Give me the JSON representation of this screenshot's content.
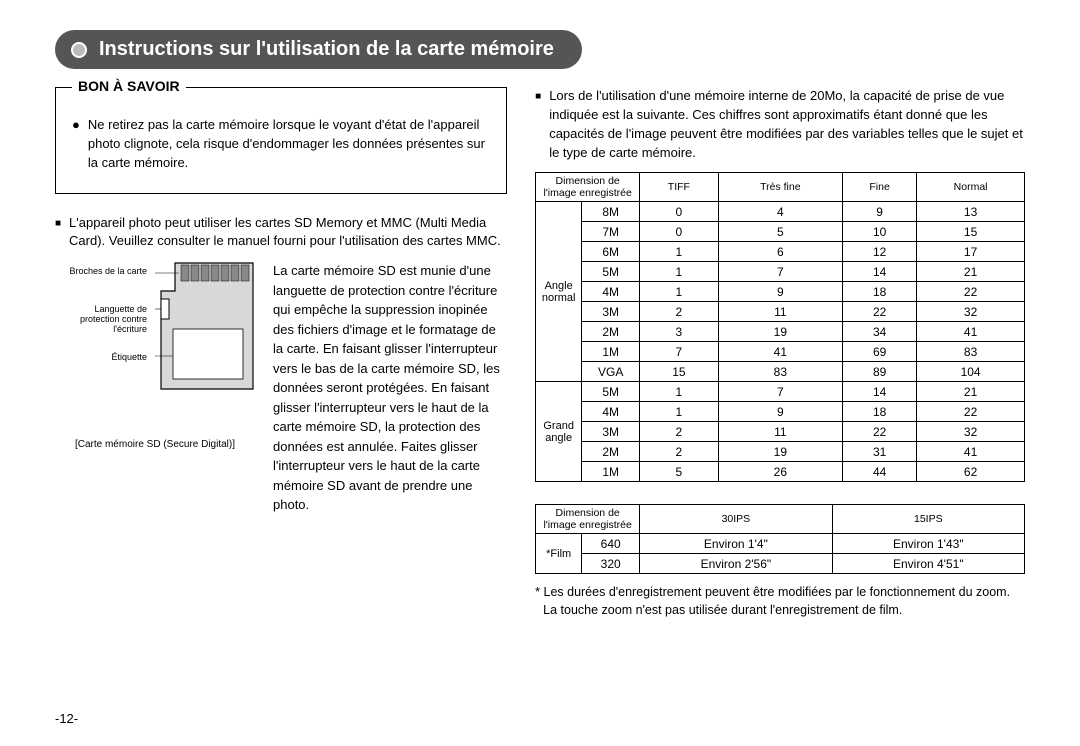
{
  "title": "Instructions sur l'utilisation de la carte mémoire",
  "infoBox": {
    "heading": "BON À SAVOIR",
    "text": "Ne retirez pas la carte mémoire lorsque le voyant d'état de l'appareil photo clignote, cela risque d'endommager les données présentes sur la carte mémoire."
  },
  "leftNote": "L'appareil photo peut utiliser les cartes SD Memory et MMC (Multi Media Card). Veuillez consulter le manuel fourni pour l'utilisation des cartes MMC.",
  "sdLabels": {
    "pins": "Broches de la carte",
    "lock": "Languette de protection contre l'écriture",
    "label": "Étiquette",
    "caption": "[Carte mémoire SD (Secure Digital)]"
  },
  "sdParagraph": "La carte mémoire SD est munie d'une languette de protection contre l'écriture qui empêche la suppression inopinée des fichiers d'image et le formatage de la carte. En faisant glisser l'interrupteur vers le bas de la carte mémoire SD, les données seront protégées. En faisant glisser l'interrupteur vers le haut de la carte mémoire SD, la protection des données est annulée. Faites glisser l'interrupteur vers le haut de la carte mémoire SD avant de prendre une photo.",
  "rightIntro": "Lors de l'utilisation d'une mémoire interne de 20Mo, la capacité de prise de vue indiquée est la suivante. Ces chiffres sont approximatifs étant donné que les capacités de l'image peuvent être modifiées par des variables telles que le sujet et le type de carte mémoire.",
  "table1": {
    "header": [
      "Dimension de l'image enregistrée",
      "TIFF",
      "Très fine",
      "Fine",
      "Normal"
    ],
    "groups": [
      {
        "label": "Angle normal",
        "rows": [
          {
            "size": "8M",
            "v": [
              "0",
              "4",
              "9",
              "13"
            ]
          },
          {
            "size": "7M",
            "v": [
              "0",
              "5",
              "10",
              "15"
            ]
          },
          {
            "size": "6M",
            "v": [
              "1",
              "6",
              "12",
              "17"
            ]
          },
          {
            "size": "5M",
            "v": [
              "1",
              "7",
              "14",
              "21"
            ]
          },
          {
            "size": "4M",
            "v": [
              "1",
              "9",
              "18",
              "22"
            ]
          },
          {
            "size": "3M",
            "v": [
              "2",
              "11",
              "22",
              "32"
            ]
          },
          {
            "size": "2M",
            "v": [
              "3",
              "19",
              "34",
              "41"
            ]
          },
          {
            "size": "1M",
            "v": [
              "7",
              "41",
              "69",
              "83"
            ]
          },
          {
            "size": "VGA",
            "v": [
              "15",
              "83",
              "89",
              "104"
            ]
          }
        ]
      },
      {
        "label": "Grand angle",
        "rows": [
          {
            "size": "5M",
            "v": [
              "1",
              "7",
              "14",
              "21"
            ]
          },
          {
            "size": "4M",
            "v": [
              "1",
              "9",
              "18",
              "22"
            ]
          },
          {
            "size": "3M",
            "v": [
              "2",
              "11",
              "22",
              "32"
            ]
          },
          {
            "size": "2M",
            "v": [
              "2",
              "19",
              "31",
              "41"
            ]
          },
          {
            "size": "1M",
            "v": [
              "5",
              "26",
              "44",
              "62"
            ]
          }
        ]
      }
    ]
  },
  "table2": {
    "header": [
      "Dimension de l'image enregistrée",
      "30IPS",
      "15IPS"
    ],
    "groupLabel": "*Film",
    "rows": [
      {
        "size": "640",
        "v": [
          "Environ 1'4\"",
          "Environ 1'43\""
        ]
      },
      {
        "size": "320",
        "v": [
          "Environ 2'56\"",
          "Environ 4'51\""
        ]
      }
    ]
  },
  "footnotes": [
    "* Les durées d'enregistrement peuvent être modifiées par le fonctionnement du zoom.",
    "La touche zoom n'est pas utilisée durant l'enregistrement de film."
  ],
  "pageNumber": "-12-"
}
